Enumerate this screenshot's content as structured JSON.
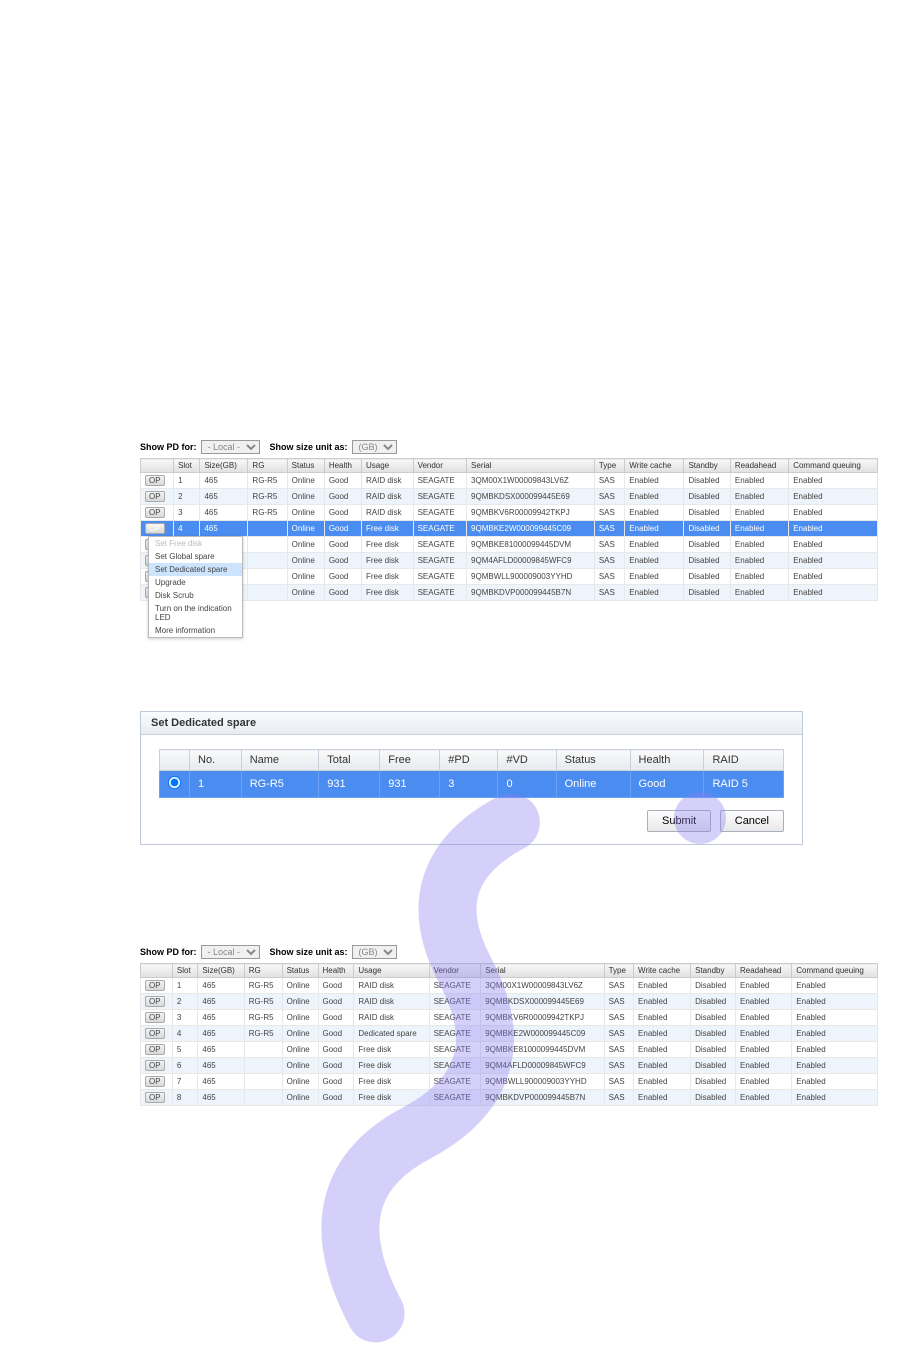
{
  "watermark_color": "#8a7cf0",
  "controls": {
    "show_pd_for_label": "Show PD for:",
    "pd_for_value": "- Local -",
    "show_size_unit_label": "Show size unit as:",
    "size_unit_value": "(GB)"
  },
  "pd_headers": [
    "",
    "Slot",
    "Size(GB)",
    "RG",
    "Status",
    "Health",
    "Usage",
    "Vendor",
    "Serial",
    "Type",
    "Write cache",
    "Standby",
    "Readahead",
    "Command queuing"
  ],
  "op_label": "OP",
  "context_menu": {
    "items": [
      {
        "label": "Set Free disk",
        "disabled": true
      },
      {
        "label": "Set Global spare",
        "disabled": false
      },
      {
        "label": "Set Dedicated spare",
        "disabled": false,
        "hover": true
      },
      {
        "label": "Upgrade",
        "disabled": false
      },
      {
        "label": "Disk Scrub",
        "disabled": false
      },
      {
        "label": "Turn on the indication LED",
        "disabled": false
      },
      {
        "label": "More information",
        "disabled": false
      }
    ]
  },
  "table1_rows": [
    {
      "slot": "1",
      "size": "465",
      "rg": "RG-R5",
      "status": "Online",
      "health": "Good",
      "usage": "RAID disk",
      "vendor": "SEAGATE",
      "serial": "3QM00X1W00009843LV6Z",
      "type": "SAS",
      "wc": "Enabled",
      "sb": "Disabled",
      "ra": "Enabled",
      "cq": "Enabled",
      "selected": false,
      "usage_class": "blue"
    },
    {
      "slot": "2",
      "size": "465",
      "rg": "RG-R5",
      "status": "Online",
      "health": "Good",
      "usage": "RAID disk",
      "vendor": "SEAGATE",
      "serial": "9QMBKDSX000099445E69",
      "type": "SAS",
      "wc": "Enabled",
      "sb": "Disabled",
      "ra": "Enabled",
      "cq": "Enabled",
      "selected": false,
      "usage_class": "blue"
    },
    {
      "slot": "3",
      "size": "465",
      "rg": "RG-R5",
      "status": "Online",
      "health": "Good",
      "usage": "RAID disk",
      "vendor": "SEAGATE",
      "serial": "9QMBKV6R00009942TKPJ",
      "type": "SAS",
      "wc": "Enabled",
      "sb": "Disabled",
      "ra": "Enabled",
      "cq": "Enabled",
      "selected": false,
      "usage_class": "blue"
    },
    {
      "slot": "4",
      "size": "465",
      "rg": "",
      "status": "Online",
      "health": "Good",
      "usage": "Free disk",
      "vendor": "SEAGATE",
      "serial": "9QMBKE2W000099445C09",
      "type": "SAS",
      "wc": "Enabled",
      "sb": "Disabled",
      "ra": "Enabled",
      "cq": "Enabled",
      "selected": true,
      "usage_class": "green"
    },
    {
      "slot": "5",
      "size": "465",
      "rg": "",
      "status": "Online",
      "health": "Good",
      "usage": "Free disk",
      "vendor": "SEAGATE",
      "serial": "9QMBKE81000099445DVM",
      "type": "SAS",
      "wc": "Enabled",
      "sb": "Disabled",
      "ra": "Enabled",
      "cq": "Enabled",
      "selected": false,
      "usage_class": "green"
    },
    {
      "slot": "6",
      "size": "465",
      "rg": "",
      "status": "Online",
      "health": "Good",
      "usage": "Free disk",
      "vendor": "SEAGATE",
      "serial": "9QM4AFLD00009845WFC9",
      "type": "SAS",
      "wc": "Enabled",
      "sb": "Disabled",
      "ra": "Enabled",
      "cq": "Enabled",
      "selected": false,
      "usage_class": "green"
    },
    {
      "slot": "7",
      "size": "465",
      "rg": "",
      "status": "Online",
      "health": "Good",
      "usage": "Free disk",
      "vendor": "SEAGATE",
      "serial": "9QMBWLL900009003YYHD",
      "type": "SAS",
      "wc": "Enabled",
      "sb": "Disabled",
      "ra": "Enabled",
      "cq": "Enabled",
      "selected": false,
      "usage_class": "green"
    },
    {
      "slot": "8",
      "size": "465",
      "rg": "",
      "status": "Online",
      "health": "Good",
      "usage": "Free disk",
      "vendor": "SEAGATE",
      "serial": "9QMBKDVP000099445B7N",
      "type": "SAS",
      "wc": "Enabled",
      "sb": "Disabled",
      "ra": "Enabled",
      "cq": "Enabled",
      "selected": false,
      "usage_class": "green"
    }
  ],
  "dialog": {
    "title": "Set Dedicated spare",
    "headers": [
      "",
      "No.",
      "Name",
      "Total",
      "Free",
      "#PD",
      "#VD",
      "Status",
      "Health",
      "RAID"
    ],
    "row": {
      "no": "1",
      "name": "RG-R5",
      "total": "931",
      "free": "931",
      "pd": "3",
      "vd": "0",
      "status": "Online",
      "health": "Good",
      "raid": "RAID 5"
    },
    "submit_label": "Submit",
    "cancel_label": "Cancel"
  },
  "table3_rows": [
    {
      "slot": "1",
      "size": "465",
      "rg": "RG-R5",
      "status": "Online",
      "health": "Good",
      "usage": "RAID disk",
      "vendor": "SEAGATE",
      "serial": "3QM00X1W00009843LV6Z",
      "type": "SAS",
      "wc": "Enabled",
      "sb": "Disabled",
      "ra": "Enabled",
      "cq": "Enabled",
      "usage_class": "blue"
    },
    {
      "slot": "2",
      "size": "465",
      "rg": "RG-R5",
      "status": "Online",
      "health": "Good",
      "usage": "RAID disk",
      "vendor": "SEAGATE",
      "serial": "9QMBKDSX000099445E69",
      "type": "SAS",
      "wc": "Enabled",
      "sb": "Disabled",
      "ra": "Enabled",
      "cq": "Enabled",
      "usage_class": "blue"
    },
    {
      "slot": "3",
      "size": "465",
      "rg": "RG-R5",
      "status": "Online",
      "health": "Good",
      "usage": "RAID disk",
      "vendor": "SEAGATE",
      "serial": "9QMBKV6R00009942TKPJ",
      "type": "SAS",
      "wc": "Enabled",
      "sb": "Disabled",
      "ra": "Enabled",
      "cq": "Enabled",
      "usage_class": "blue"
    },
    {
      "slot": "4",
      "size": "465",
      "rg": "RG-R5",
      "status": "Online",
      "health": "Good",
      "usage": "Dedicated spare",
      "vendor": "SEAGATE",
      "serial": "9QMBKE2W000099445C09",
      "type": "SAS",
      "wc": "Enabled",
      "sb": "Disabled",
      "ra": "Enabled",
      "cq": "Enabled",
      "usage_class": "blue"
    },
    {
      "slot": "5",
      "size": "465",
      "rg": "",
      "status": "Online",
      "health": "Good",
      "usage": "Free disk",
      "vendor": "SEAGATE",
      "serial": "9QMBKE81000099445DVM",
      "type": "SAS",
      "wc": "Enabled",
      "sb": "Disabled",
      "ra": "Enabled",
      "cq": "Enabled",
      "usage_class": "green"
    },
    {
      "slot": "6",
      "size": "465",
      "rg": "",
      "status": "Online",
      "health": "Good",
      "usage": "Free disk",
      "vendor": "SEAGATE",
      "serial": "9QM4AFLD00009845WFC9",
      "type": "SAS",
      "wc": "Enabled",
      "sb": "Disabled",
      "ra": "Enabled",
      "cq": "Enabled",
      "usage_class": "green"
    },
    {
      "slot": "7",
      "size": "465",
      "rg": "",
      "status": "Online",
      "health": "Good",
      "usage": "Free disk",
      "vendor": "SEAGATE",
      "serial": "9QMBWLL900009003YYHD",
      "type": "SAS",
      "wc": "Enabled",
      "sb": "Disabled",
      "ra": "Enabled",
      "cq": "Enabled",
      "usage_class": "green"
    },
    {
      "slot": "8",
      "size": "465",
      "rg": "",
      "status": "Online",
      "health": "Good",
      "usage": "Free disk",
      "vendor": "SEAGATE",
      "serial": "9QMBKDVP000099445B7N",
      "type": "SAS",
      "wc": "Enabled",
      "sb": "Disabled",
      "ra": "Enabled",
      "cq": "Enabled",
      "usage_class": "green"
    }
  ],
  "colors": {
    "green": "#2a9a2a",
    "blue": "#4060c0",
    "row_selected": "#4a8cf0",
    "row_odd": "#eef4fb",
    "header_grad_top": "#f8f8f8",
    "header_grad_bot": "#e0e0e0"
  }
}
